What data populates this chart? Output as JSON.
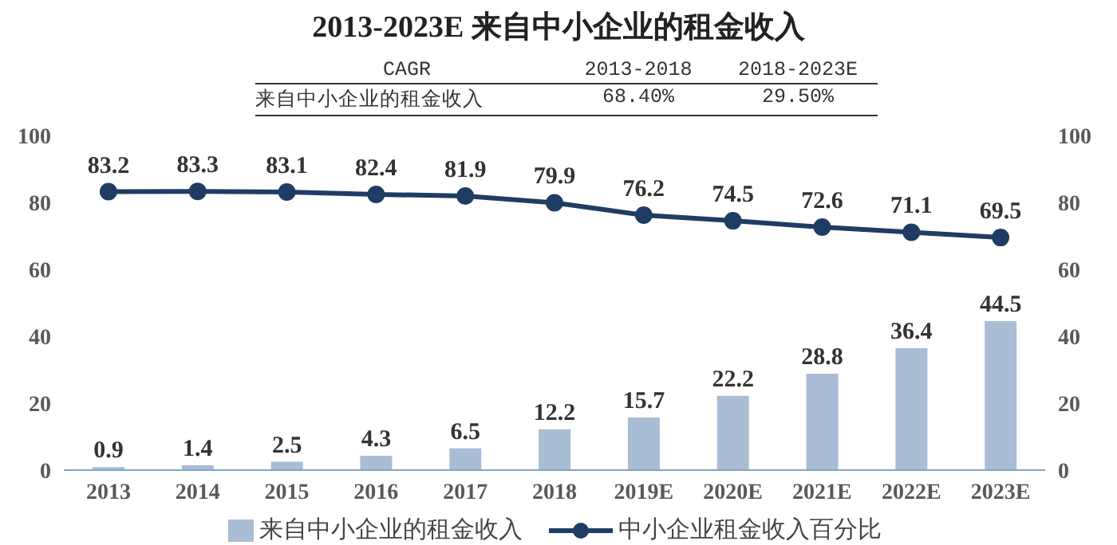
{
  "chart_data": {
    "type": "bar",
    "title": "2013-2023E 来自中小企业的租金收入",
    "annotations": [
      "CAGR",
      "2013-2018",
      "2018-2023E",
      "来自中小企业的租金收入",
      "68.40%",
      "29.50%"
    ],
    "categories": [
      "2013",
      "2014",
      "2015",
      "2016",
      "2017",
      "2018",
      "2019E",
      "2020E",
      "2021E",
      "2022E",
      "2023E"
    ],
    "series": [
      {
        "name": "来自中小企业的租金收入",
        "type": "bar",
        "color": "#a9bdd4",
        "values": [
          0.9,
          1.4,
          2.5,
          4.3,
          6.5,
          12.2,
          15.7,
          22.2,
          28.8,
          36.4,
          44.5
        ]
      },
      {
        "name": "中小企业租金收入百分比",
        "type": "line",
        "axis": "y2",
        "color": "#1f3d64",
        "values": [
          83.2,
          83.3,
          83.1,
          82.4,
          81.9,
          79.9,
          76.2,
          74.5,
          72.6,
          71.1,
          69.5
        ]
      }
    ],
    "ylim": [
      0,
      100
    ],
    "yticks": [
      0,
      20,
      40,
      60,
      80,
      100
    ],
    "y2lim": [
      0,
      100
    ],
    "y2ticks": [
      0,
      20,
      40,
      60,
      80,
      100
    ],
    "data_labels": true,
    "legend": "bottom",
    "marker": "circle",
    "line_style": "solid",
    "grid": false
  }
}
